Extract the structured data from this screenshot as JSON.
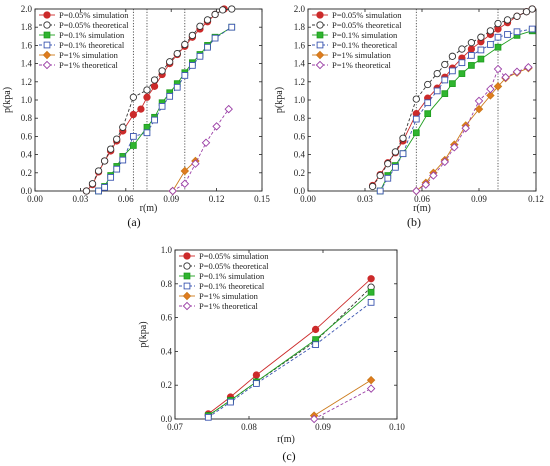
{
  "chart_data": [
    {
      "type": "line",
      "caption": "(a)",
      "xlabel": "r(m)",
      "ylabel": "p(kpa)",
      "xlim": [
        0.0,
        0.15
      ],
      "ylim": [
        0.0,
        2.0
      ],
      "xticks": [
        "0.00",
        "0.03",
        "0.06",
        "0.09",
        "0.12",
        "0.15"
      ],
      "yticks": [
        "0.0",
        "0.2",
        "0.4",
        "0.6",
        "0.8",
        "1.0",
        "1.2",
        "1.4",
        "1.6",
        "1.8",
        "2.0"
      ],
      "vlines": [
        0.065,
        0.074,
        0.099
      ],
      "legend": "top-left",
      "series": [
        {
          "name": "P=0.05% simulation",
          "color": "#cc2a2a",
          "marker": "circle",
          "fill": "#cc2a2a",
          "dash": "none",
          "points": [
            [
              0.034,
              0.0
            ],
            [
              0.038,
              0.07
            ],
            [
              0.042,
              0.21
            ],
            [
              0.046,
              0.33
            ],
            [
              0.05,
              0.44
            ],
            [
              0.054,
              0.55
            ],
            [
              0.058,
              0.66
            ],
            [
              0.065,
              0.84
            ],
            [
              0.07,
              0.9
            ],
            [
              0.074,
              1.03
            ],
            [
              0.079,
              1.15
            ],
            [
              0.084,
              1.28
            ],
            [
              0.089,
              1.4
            ],
            [
              0.094,
              1.5
            ],
            [
              0.099,
              1.59
            ],
            [
              0.104,
              1.69
            ],
            [
              0.109,
              1.78
            ],
            [
              0.114,
              1.86
            ],
            [
              0.119,
              1.94
            ],
            [
              0.125,
              2.0
            ]
          ]
        },
        {
          "name": "P=0.05% theoretical",
          "color": "#333333",
          "marker": "circle",
          "fill": "#ffffff",
          "dash": "3,2",
          "points": [
            [
              0.034,
              0.0
            ],
            [
              0.038,
              0.08
            ],
            [
              0.042,
              0.22
            ],
            [
              0.046,
              0.33
            ],
            [
              0.05,
              0.46
            ],
            [
              0.054,
              0.57
            ],
            [
              0.058,
              0.7
            ],
            [
              0.065,
              1.03
            ],
            [
              0.074,
              1.11
            ],
            [
              0.079,
              1.22
            ],
            [
              0.084,
              1.32
            ],
            [
              0.089,
              1.42
            ],
            [
              0.094,
              1.51
            ],
            [
              0.099,
              1.61
            ],
            [
              0.104,
              1.71
            ],
            [
              0.109,
              1.81
            ],
            [
              0.114,
              1.88
            ],
            [
              0.119,
              1.94
            ],
            [
              0.124,
              1.99
            ],
            [
              0.13,
              2.0
            ]
          ]
        },
        {
          "name": "P=0.1%  simulation",
          "color": "#1f9e1f",
          "marker": "square",
          "fill": "#2fb52f",
          "dash": "none",
          "points": [
            [
              0.042,
              0.0
            ],
            [
              0.046,
              0.05
            ],
            [
              0.05,
              0.17
            ],
            [
              0.054,
              0.27
            ],
            [
              0.058,
              0.38
            ],
            [
              0.065,
              0.5
            ],
            [
              0.074,
              0.7
            ],
            [
              0.079,
              0.81
            ],
            [
              0.084,
              0.97
            ],
            [
              0.089,
              1.08
            ],
            [
              0.094,
              1.18
            ],
            [
              0.099,
              1.3
            ],
            [
              0.104,
              1.41
            ],
            [
              0.109,
              1.5
            ],
            [
              0.114,
              1.6
            ],
            [
              0.119,
              1.69
            ],
            [
              0.13,
              1.8
            ]
          ]
        },
        {
          "name": "P=0.1%  theoretical",
          "color": "#3b55b0",
          "marker": "square",
          "fill": "#ffffff",
          "dash": "3,2",
          "points": [
            [
              0.042,
              0.0
            ],
            [
              0.046,
              0.04
            ],
            [
              0.05,
              0.15
            ],
            [
              0.054,
              0.24
            ],
            [
              0.058,
              0.34
            ],
            [
              0.065,
              0.6
            ],
            [
              0.074,
              0.64
            ],
            [
              0.079,
              0.78
            ],
            [
              0.084,
              0.93
            ],
            [
              0.089,
              1.04
            ],
            [
              0.094,
              1.14
            ],
            [
              0.099,
              1.27
            ],
            [
              0.104,
              1.38
            ],
            [
              0.109,
              1.48
            ],
            [
              0.114,
              1.58
            ],
            [
              0.119,
              1.68
            ],
            [
              0.13,
              1.8
            ]
          ]
        },
        {
          "name": "P=1%     simulation",
          "color": "#cc7a1a",
          "marker": "diamond",
          "fill": "#e07b1f",
          "dash": "none",
          "points": [
            [
              0.091,
              0.0
            ],
            [
              0.099,
              0.22
            ],
            [
              0.106,
              0.33
            ]
          ]
        },
        {
          "name": "P=1%     theoretical",
          "color": "#9b3fa6",
          "marker": "diamond",
          "fill": "#ffffff",
          "dash": "3,2",
          "points": [
            [
              0.091,
              0.0
            ],
            [
              0.099,
              0.08
            ],
            [
              0.106,
              0.3
            ],
            [
              0.113,
              0.53
            ],
            [
              0.12,
              0.71
            ],
            [
              0.128,
              0.9
            ]
          ]
        }
      ]
    },
    {
      "type": "line",
      "caption": "(b)",
      "xlabel": "r(m)",
      "ylabel": "p(kpa)",
      "xlim": [
        0.0,
        0.12
      ],
      "ylim": [
        0.0,
        2.0
      ],
      "xticks": [
        "0.00",
        "0.03",
        "0.06",
        "0.09",
        "0.12"
      ],
      "yticks": [
        "0.0",
        "0.2",
        "0.4",
        "0.6",
        "0.8",
        "1.0",
        "1.2",
        "1.4",
        "1.6",
        "1.8",
        "2.0"
      ],
      "vlines": [
        0.057,
        0.1
      ],
      "legend": "top-left",
      "series": [
        {
          "name": "P=0.05% simulation",
          "color": "#cc2a2a",
          "marker": "circle",
          "fill": "#cc2a2a",
          "dash": "none",
          "points": [
            [
              0.034,
              0.06
            ],
            [
              0.038,
              0.18
            ],
            [
              0.042,
              0.31
            ],
            [
              0.046,
              0.42
            ],
            [
              0.05,
              0.55
            ],
            [
              0.057,
              0.85
            ],
            [
              0.063,
              1.02
            ],
            [
              0.068,
              1.13
            ],
            [
              0.072,
              1.25
            ],
            [
              0.076,
              1.35
            ],
            [
              0.081,
              1.46
            ],
            [
              0.086,
              1.56
            ],
            [
              0.091,
              1.64
            ],
            [
              0.096,
              1.72
            ],
            [
              0.1,
              1.78
            ],
            [
              0.105,
              1.85
            ],
            [
              0.11,
              1.92
            ],
            [
              0.115,
              1.97
            ],
            [
              0.118,
              2.0
            ]
          ]
        },
        {
          "name": "P=0.05% theoretical",
          "color": "#333333",
          "marker": "circle",
          "fill": "#ffffff",
          "dash": "3,2",
          "points": [
            [
              0.034,
              0.05
            ],
            [
              0.038,
              0.17
            ],
            [
              0.042,
              0.3
            ],
            [
              0.046,
              0.43
            ],
            [
              0.05,
              0.58
            ],
            [
              0.057,
              1.01
            ],
            [
              0.063,
              1.17
            ],
            [
              0.068,
              1.29
            ],
            [
              0.072,
              1.39
            ],
            [
              0.076,
              1.48
            ],
            [
              0.081,
              1.56
            ],
            [
              0.086,
              1.63
            ],
            [
              0.091,
              1.69
            ],
            [
              0.096,
              1.76
            ],
            [
              0.1,
              1.84
            ],
            [
              0.105,
              1.88
            ],
            [
              0.11,
              1.92
            ],
            [
              0.115,
              1.97
            ],
            [
              0.118,
              2.0
            ]
          ]
        },
        {
          "name": "P=0.1%  simulation",
          "color": "#1f9e1f",
          "marker": "square",
          "fill": "#2fb52f",
          "dash": "none",
          "points": [
            [
              0.038,
              0.0
            ],
            [
              0.042,
              0.17
            ],
            [
              0.046,
              0.28
            ],
            [
              0.05,
              0.41
            ],
            [
              0.057,
              0.64
            ],
            [
              0.063,
              0.85
            ],
            [
              0.072,
              1.07
            ],
            [
              0.076,
              1.18
            ],
            [
              0.081,
              1.29
            ],
            [
              0.086,
              1.38
            ],
            [
              0.091,
              1.45
            ],
            [
              0.1,
              1.58
            ],
            [
              0.11,
              1.71
            ],
            [
              0.118,
              1.76
            ]
          ]
        },
        {
          "name": "P=0.1%  theoretical",
          "color": "#3b55b0",
          "marker": "square",
          "fill": "#ffffff",
          "dash": "3,2",
          "points": [
            [
              0.038,
              0.0
            ],
            [
              0.042,
              0.14
            ],
            [
              0.046,
              0.26
            ],
            [
              0.05,
              0.41
            ],
            [
              0.057,
              0.79
            ],
            [
              0.063,
              0.97
            ],
            [
              0.068,
              1.1
            ],
            [
              0.072,
              1.22
            ],
            [
              0.076,
              1.32
            ],
            [
              0.081,
              1.41
            ],
            [
              0.086,
              1.49
            ],
            [
              0.091,
              1.55
            ],
            [
              0.096,
              1.61
            ],
            [
              0.1,
              1.69
            ],
            [
              0.105,
              1.72
            ],
            [
              0.11,
              1.75
            ],
            [
              0.118,
              1.78
            ]
          ]
        },
        {
          "name": "P=1%     simulation",
          "color": "#cc7a1a",
          "marker": "diamond",
          "fill": "#e07b1f",
          "dash": "none",
          "points": [
            [
              0.057,
              0.0
            ],
            [
              0.062,
              0.09
            ],
            [
              0.066,
              0.2
            ],
            [
              0.072,
              0.34
            ],
            [
              0.077,
              0.51
            ],
            [
              0.083,
              0.72
            ],
            [
              0.09,
              0.9
            ],
            [
              0.096,
              1.05
            ],
            [
              0.1,
              1.15
            ],
            [
              0.104,
              1.24
            ],
            [
              0.11,
              1.3
            ],
            [
              0.116,
              1.35
            ]
          ]
        },
        {
          "name": "P=1%     theoretical",
          "color": "#9b3fa6",
          "marker": "diamond",
          "fill": "#ffffff",
          "dash": "3,2",
          "points": [
            [
              0.057,
              0.0
            ],
            [
              0.062,
              0.07
            ],
            [
              0.066,
              0.17
            ],
            [
              0.072,
              0.32
            ],
            [
              0.077,
              0.48
            ],
            [
              0.083,
              0.69
            ],
            [
              0.09,
              0.99
            ],
            [
              0.096,
              1.12
            ],
            [
              0.1,
              1.34
            ],
            [
              0.104,
              1.25
            ],
            [
              0.11,
              1.31
            ],
            [
              0.116,
              1.36
            ]
          ]
        }
      ]
    },
    {
      "type": "line",
      "caption": "(c)",
      "xlabel": "r(m)",
      "ylabel": "p(kpa)",
      "xlim": [
        0.07,
        0.1
      ],
      "ylim": [
        0.0,
        1.0
      ],
      "xticks": [
        "0.07",
        "0.08",
        "0.09",
        "0.10"
      ],
      "yticks": [
        "0.0",
        "0.2",
        "0.4",
        "0.6",
        "0.8",
        "1.0"
      ],
      "vlines": [],
      "legend": "top-left",
      "series": [
        {
          "name": "P=0.05% simulation",
          "color": "#cc2a2a",
          "marker": "circle",
          "fill": "#cc2a2a",
          "dash": "none",
          "points": [
            [
              0.0745,
              0.03
            ],
            [
              0.0775,
              0.13
            ],
            [
              0.081,
              0.26
            ],
            [
              0.089,
              0.53
            ],
            [
              0.0965,
              0.83
            ]
          ]
        },
        {
          "name": "P=0.05% theoretical",
          "color": "#333333",
          "marker": "circle",
          "fill": "#ffffff",
          "dash": "3,2",
          "points": [
            [
              0.0745,
              0.02
            ],
            [
              0.0775,
              0.11
            ],
            [
              0.081,
              0.22
            ],
            [
              0.089,
              0.46
            ],
            [
              0.0965,
              0.78
            ]
          ]
        },
        {
          "name": "P=0.1%  simulation",
          "color": "#1f9e1f",
          "marker": "square",
          "fill": "#2fb52f",
          "dash": "none",
          "points": [
            [
              0.0745,
              0.02
            ],
            [
              0.0775,
              0.11
            ],
            [
              0.081,
              0.22
            ],
            [
              0.089,
              0.47
            ],
            [
              0.0965,
              0.75
            ]
          ]
        },
        {
          "name": "P=0.1%  theoretical",
          "color": "#3b55b0",
          "marker": "square",
          "fill": "#ffffff",
          "dash": "3,2",
          "points": [
            [
              0.0745,
              0.01
            ],
            [
              0.0775,
              0.1
            ],
            [
              0.081,
              0.21
            ],
            [
              0.089,
              0.44
            ],
            [
              0.0965,
              0.69
            ]
          ]
        },
        {
          "name": "P=1%     simulation",
          "color": "#cc7a1a",
          "marker": "diamond",
          "fill": "#e07b1f",
          "dash": "none",
          "points": [
            [
              0.0888,
              0.02
            ],
            [
              0.0965,
              0.23
            ]
          ]
        },
        {
          "name": "P=1%     theoretical",
          "color": "#9b3fa6",
          "marker": "diamond",
          "fill": "#ffffff",
          "dash": "3,2",
          "points": [
            [
              0.0888,
              0.0
            ],
            [
              0.0965,
              0.18
            ]
          ]
        }
      ]
    }
  ]
}
